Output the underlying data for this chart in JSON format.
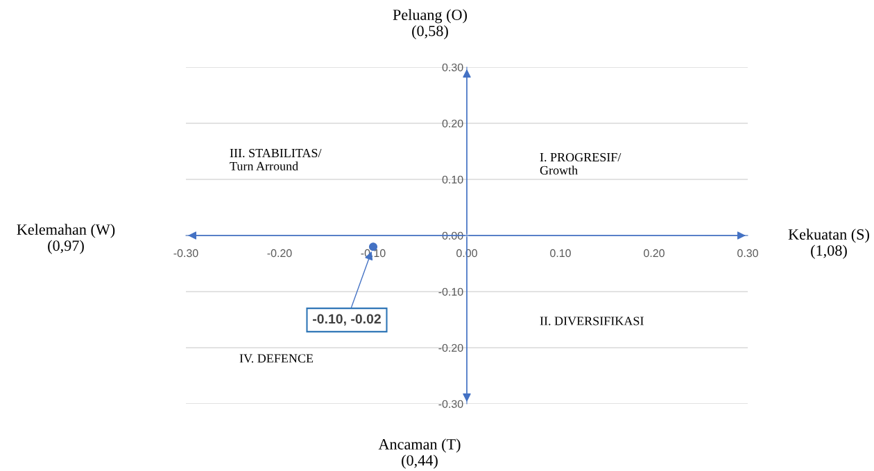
{
  "chart_data": {
    "type": "scatter",
    "x": [
      -0.1
    ],
    "series": [
      {
        "color": "#4472c4",
        "values": [
          -0.02
        ]
      }
    ],
    "xlim": [
      -0.3,
      0.3
    ],
    "ylim": [
      -0.3,
      0.3
    ],
    "xticks": [
      {
        "value": -0.3,
        "label": "-0.30"
      },
      {
        "value": -0.2,
        "label": "-0.20"
      },
      {
        "value": -0.1,
        "label": "-0.10"
      },
      {
        "value": 0,
        "label": "0.00"
      },
      {
        "value": 0.1,
        "label": "0.10"
      },
      {
        "value": 0.2,
        "label": "0.20"
      },
      {
        "value": 0.3,
        "label": "0.30"
      }
    ],
    "yticks": [
      {
        "value": -0.3,
        "label": "-0.30"
      },
      {
        "value": -0.2,
        "label": "-0.20"
      },
      {
        "value": -0.1,
        "label": "-0.10"
      },
      {
        "value": 0,
        "label": "0.00"
      },
      {
        "value": 0.1,
        "label": "0.10"
      },
      {
        "value": 0.2,
        "label": "0.20"
      },
      {
        "value": 0.3,
        "label": "0.30"
      }
    ],
    "grid": "y",
    "marker": "circle",
    "legend": false,
    "annotations": [
      "Peluang (O)\n(0,58)",
      "Ancaman (T)\n(0,44)",
      "Kelemahan (W)\n(0,97)",
      "Kekuatan (S)\n(1,08)",
      "I. PROGRESIF/\nGrowth",
      "II. DIVERSIFIKASI",
      "III. STABILITAS/\nTurn Arround",
      "IV. DEFENCE",
      {
        "text": "-0.10, -0.02",
        "x": -0.1,
        "y": -0.02
      }
    ]
  }
}
